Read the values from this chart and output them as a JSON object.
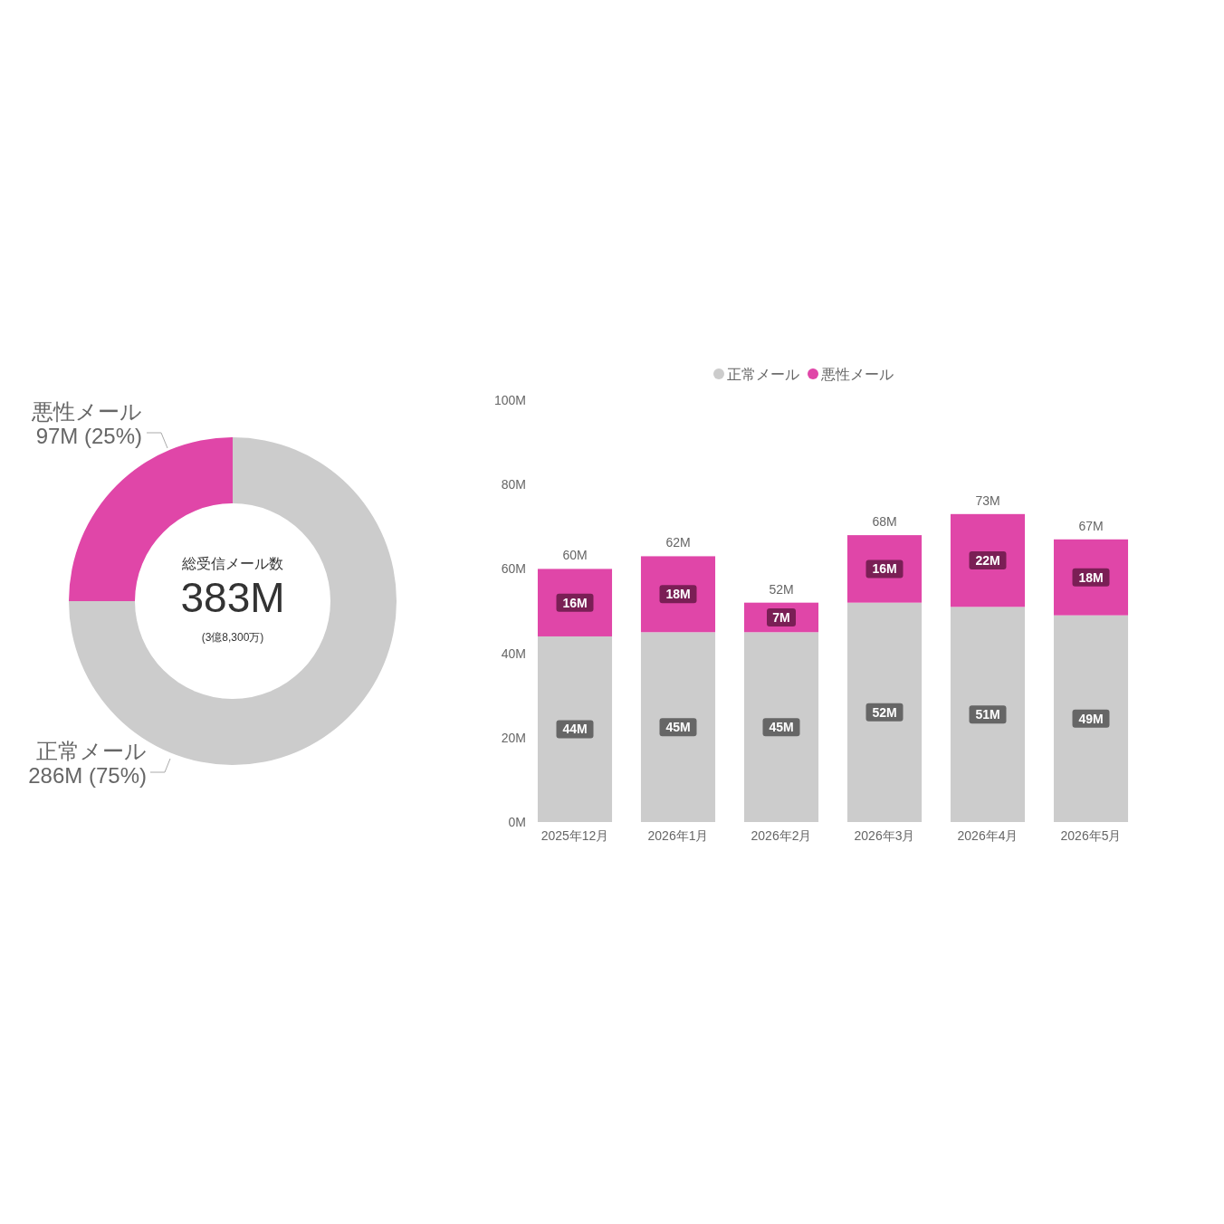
{
  "chart_data": [
    {
      "type": "donut",
      "categories": [
        "正常メール",
        "悪性メール"
      ],
      "values": [
        75,
        25
      ],
      "colors": [
        "#cccccc",
        "#e046a8"
      ],
      "value_labels": [
        "286M (75%)",
        "97M (25%)"
      ],
      "annotations": [
        "総受信メール数",
        "383M",
        "(3億8,300万)"
      ]
    },
    {
      "type": "bar",
      "stacked": true,
      "categories": [
        "2025年12月",
        "2026年1月",
        "2026年2月",
        "2026年3月",
        "2026年4月",
        "2026年5月"
      ],
      "series": [
        {
          "name": "正常メール",
          "color": "#cccccc",
          "values": [
            44,
            45,
            45,
            52,
            51,
            49
          ],
          "value_labels": [
            "44M",
            "45M",
            "45M",
            "52M",
            "51M",
            "49M"
          ]
        },
        {
          "name": "悪性メール",
          "color": "#e046a8",
          "values": [
            16,
            18,
            7,
            16,
            22,
            18
          ],
          "value_labels": [
            "16M",
            "18M",
            "7M",
            "16M",
            "22M",
            "18M"
          ]
        }
      ],
      "totals": [
        "60M",
        "62M",
        "52M",
        "68M",
        "73M",
        "67M"
      ],
      "ylim": [
        0,
        100
      ],
      "yticks": [
        {
          "value": 0,
          "label": "0M"
        },
        {
          "value": 20,
          "label": "20M"
        },
        {
          "value": 40,
          "label": "40M"
        },
        {
          "value": 60,
          "label": "60M"
        },
        {
          "value": 80,
          "label": "80M"
        },
        {
          "value": 100,
          "label": "100M"
        }
      ],
      "legend": "top",
      "grid": false
    }
  ]
}
